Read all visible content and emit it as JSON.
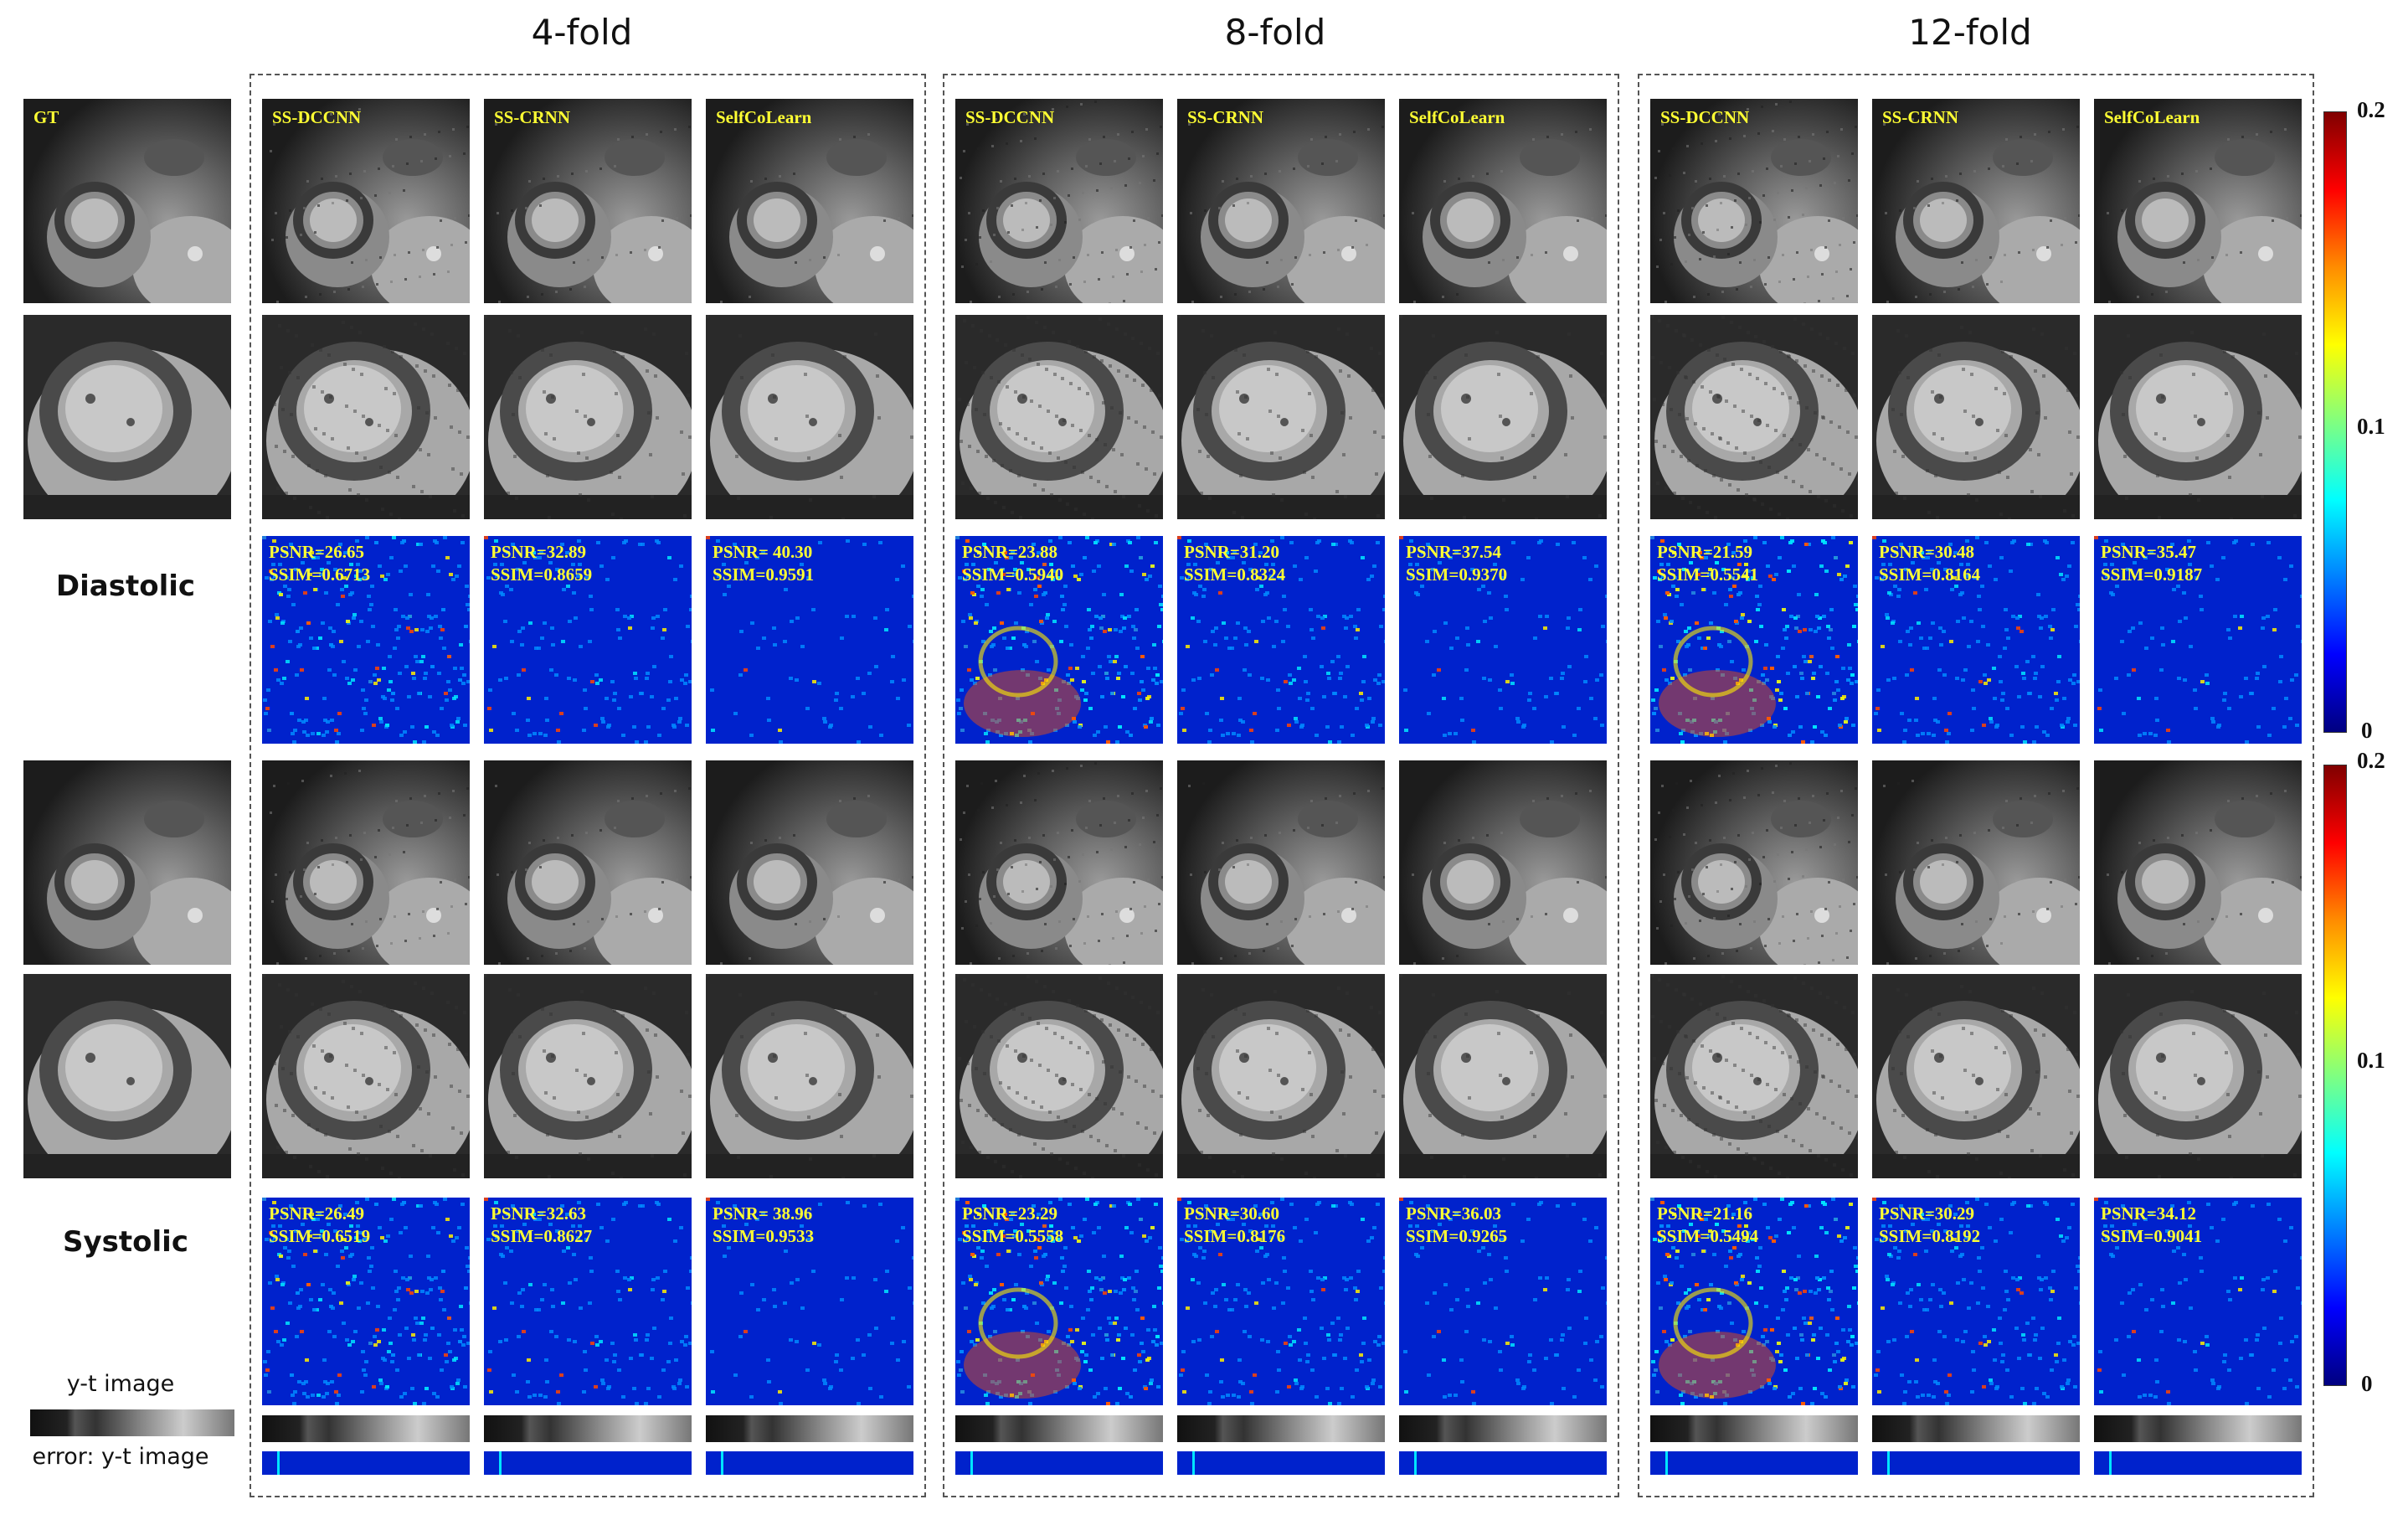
{
  "fold_titles": [
    "4-fold",
    "8-fold",
    "12-fold"
  ],
  "gt_label": "GT",
  "methods": [
    "SS-DCCNN",
    "SS-CRNN",
    "SelfCoLearn"
  ],
  "row_labels": {
    "diastolic": "Diastolic",
    "systolic": "Systolic"
  },
  "yt_label": "y-t image",
  "yt_error_label": "error: y-t image",
  "colorbar": {
    "max": "0.2",
    "mid": "0.1",
    "min": "0",
    "colors": [
      "#800000",
      "#ff0000",
      "#ff8c00",
      "#ffff00",
      "#00ffff",
      "#0000ff",
      "#000080"
    ]
  },
  "metrics": {
    "diastolic": [
      [
        {
          "psnr": "PSNR=26.65",
          "ssim": "SSIM=0.6713"
        },
        {
          "psnr": "PSNR=32.89",
          "ssim": "SSIM=0.8659"
        },
        {
          "psnr": "PSNR= 40.30",
          "ssim": "SSIM=0.9591"
        }
      ],
      [
        {
          "psnr": "PSNR=23.88",
          "ssim": "SSIM=0.5940"
        },
        {
          "psnr": "PSNR=31.20",
          "ssim": "SSIM=0.8324"
        },
        {
          "psnr": "PSNR=37.54",
          "ssim": "SSIM=0.9370"
        }
      ],
      [
        {
          "psnr": "PSNR=21.59",
          "ssim": "SSIM=0.5541"
        },
        {
          "psnr": "PSNR=30.48",
          "ssim": "SSIM=0.8164"
        },
        {
          "psnr": "PSNR=35.47",
          "ssim": "SSIM=0.9187"
        }
      ]
    ],
    "systolic": [
      [
        {
          "psnr": "PSNR=26.49",
          "ssim": "SSIM=0.6519"
        },
        {
          "psnr": "PSNR=32.63",
          "ssim": "SSIM=0.8627"
        },
        {
          "psnr": "PSNR= 38.96",
          "ssim": "SSIM=0.9533"
        }
      ],
      [
        {
          "psnr": "PSNR=23.29",
          "ssim": "SSIM=0.5558"
        },
        {
          "psnr": "PSNR=30.60",
          "ssim": "SSIM=0.8176"
        },
        {
          "psnr": "PSNR=36.03",
          "ssim": "SSIM=0.9265"
        }
      ],
      [
        {
          "psnr": "PSNR=21.16",
          "ssim": "SSIM=0.5494"
        },
        {
          "psnr": "PSNR=30.29",
          "ssim": "SSIM=0.8192"
        },
        {
          "psnr": "PSNR=34.12",
          "ssim": "SSIM=0.9041"
        }
      ]
    ]
  },
  "error_level": [
    [
      0.55,
      0.3,
      0.15
    ],
    [
      0.75,
      0.35,
      0.2
    ],
    [
      0.85,
      0.38,
      0.22
    ]
  ]
}
